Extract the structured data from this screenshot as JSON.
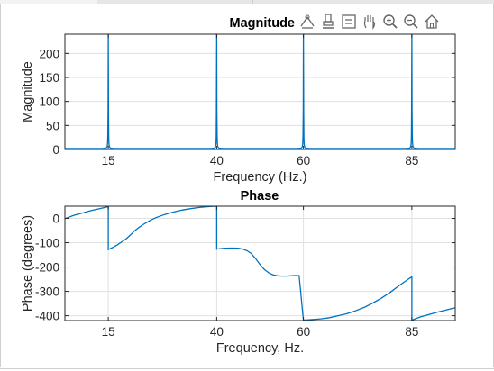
{
  "toolbar": {
    "icons": [
      "data-tips-icon",
      "brush-icon",
      "legend-icon",
      "pan-hand-icon",
      "zoom-in-icon",
      "zoom-out-icon",
      "home-icon"
    ]
  },
  "colors": {
    "line": "#0072BD",
    "grid": "#e0e0e0",
    "axis": "#262626"
  },
  "chart_data": [
    {
      "type": "line",
      "title": "Magnitude",
      "xlabel": "Frequency (Hz.)",
      "ylabel": "Magnitude",
      "xlim": [
        5,
        95
      ],
      "ylim": [
        0,
        240
      ],
      "xticks": [
        15,
        40,
        60,
        85
      ],
      "yticks": [
        0,
        50,
        100,
        150,
        200
      ],
      "grid": true,
      "series": [
        {
          "peaks": [
            15,
            40,
            60,
            85
          ],
          "peak_value": 240,
          "baseline": 2
        }
      ]
    },
    {
      "type": "line",
      "title": "Phase",
      "xlabel": "Frequency, Hz.",
      "ylabel": "Phase (degrees)",
      "xlim": [
        5,
        95
      ],
      "ylim": [
        -420,
        50
      ],
      "xticks": [
        15,
        40,
        60,
        85
      ],
      "yticks": [
        0,
        -100,
        -200,
        -300,
        -400
      ],
      "grid": true,
      "series": [
        {
          "x": [
            5,
            7,
            9,
            11,
            13,
            15,
            15,
            16,
            17,
            18,
            19,
            20,
            21,
            22,
            23,
            24,
            25,
            26,
            28,
            30,
            32,
            34,
            36,
            38,
            40,
            40,
            41,
            42,
            43,
            44,
            45,
            46,
            47,
            48,
            49,
            50,
            51,
            52,
            53,
            54,
            55,
            56,
            57,
            58,
            59,
            60,
            60,
            62,
            64,
            66,
            68,
            70,
            72,
            74,
            76,
            78,
            80,
            82,
            84,
            85,
            85,
            87,
            89,
            91,
            93,
            95
          ],
          "y": [
            -1,
            12,
            22,
            32,
            40,
            48,
            -128,
            -120,
            -110,
            -98,
            -86,
            -70,
            -52,
            -38,
            -26,
            -15,
            -5,
            3,
            16,
            26,
            34,
            40,
            45,
            48,
            50,
            -126,
            -124,
            -123,
            -122,
            -122,
            -123,
            -126,
            -133,
            -145,
            -166,
            -190,
            -210,
            -224,
            -232,
            -236,
            -237,
            -237,
            -236,
            -235,
            -235,
            -420,
            -418,
            -416,
            -413,
            -408,
            -400,
            -392,
            -380,
            -366,
            -348,
            -328,
            -304,
            -277,
            -252,
            -240,
            -418,
            -405,
            -395,
            -385,
            -376,
            -367
          ]
        }
      ]
    }
  ]
}
